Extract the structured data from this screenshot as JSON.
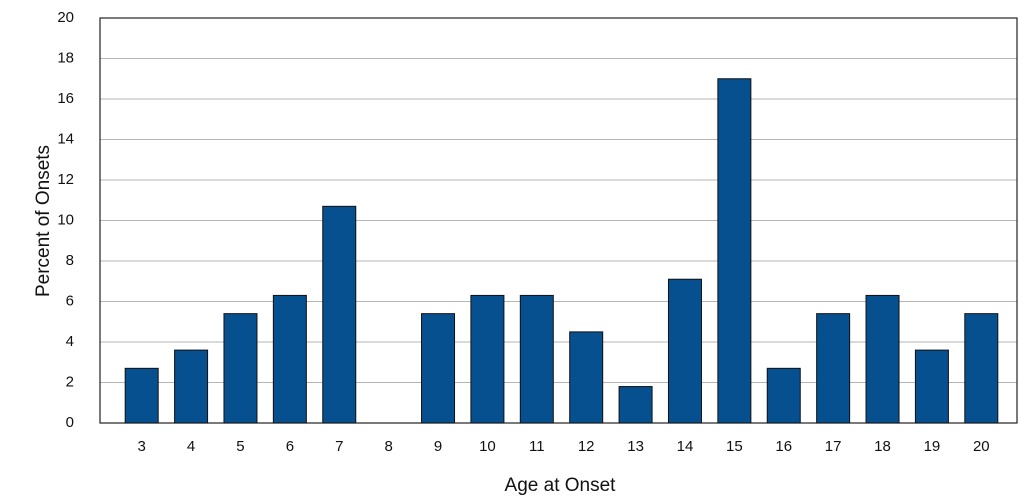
{
  "chart_data": {
    "type": "bar",
    "x_label": "Age at Onset",
    "y_label": "Percent of Onsets",
    "categories": [
      "3",
      "4",
      "5",
      "6",
      "7",
      "8",
      "9",
      "10",
      "11",
      "12",
      "13",
      "14",
      "15",
      "16",
      "17",
      "18",
      "19",
      "20"
    ],
    "values": [
      2.7,
      3.6,
      5.4,
      6.3,
      10.7,
      0,
      5.4,
      6.3,
      6.3,
      4.5,
      1.8,
      7.1,
      17,
      2.7,
      5.4,
      6.3,
      3.6,
      5.4
    ],
    "color": "#06508f",
    "ylim": [
      0,
      20
    ],
    "yticks": [
      0,
      2,
      4,
      6,
      8,
      10,
      12,
      14,
      16,
      18,
      20
    ],
    "grid": true
  }
}
